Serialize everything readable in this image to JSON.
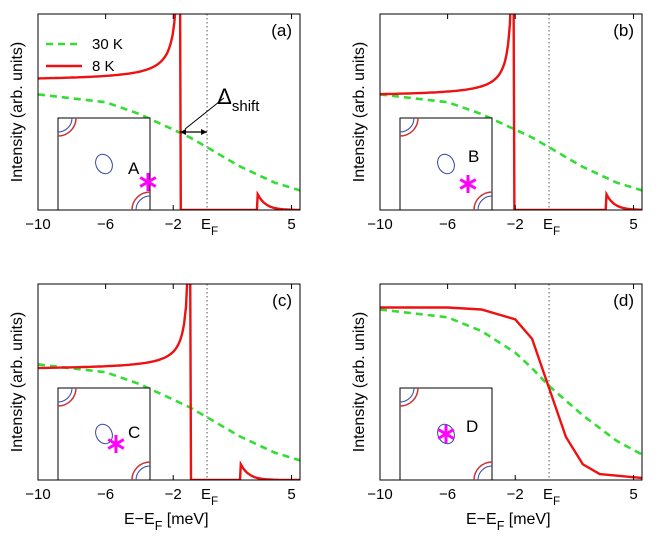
{
  "colors": {
    "series_30K": "#33dd33",
    "series_8K": "#ee1111",
    "marker": "#ff00ff",
    "inset_orbit_outer": "#cc3333",
    "inset_orbit_inner": "#3344aa",
    "ef_line": "#555555"
  },
  "legend": {
    "entries": [
      {
        "name": "30 K",
        "style": "dashed",
        "color": "#33dd33"
      },
      {
        "name": "8 K",
        "style": "solid",
        "color": "#ee1111"
      }
    ],
    "placement": "top-left of panel (a)"
  },
  "annotation": {
    "delta": "Δ",
    "delta_sub": "shift"
  },
  "shared": {
    "ylabel": "Intensity (arb. units)",
    "xlabel": "E−E",
    "xlabel_sub": "F",
    "xlabel_unit": " [meV]",
    "ef_label": "E",
    "ef_sub": "F"
  },
  "chart_data": [
    {
      "type": "line",
      "panel": "(a)",
      "inset_point": "A",
      "xlim": [
        -10,
        5.5
      ],
      "ylim": [
        0,
        1
      ],
      "x_ticks": [
        "−10",
        "−6",
        "−2",
        "5"
      ],
      "x_tick_values": [
        -10,
        -6,
        -2,
        5
      ],
      "ef_marker_x": 0,
      "grid": false,
      "series": [
        {
          "name": "30 K",
          "x": [
            -10,
            -6,
            -4,
            -2,
            -1,
            0,
            2,
            4,
            5.5
          ],
          "y": [
            0.59,
            0.55,
            0.49,
            0.41,
            0.37,
            0.32,
            0.22,
            0.14,
            0.1
          ]
        },
        {
          "name": "8 K",
          "gap_edge": -1.6,
          "peak_x": -1.6,
          "baseline_y": 0.69,
          "side_peak_x": 3.0
        }
      ]
    },
    {
      "type": "line",
      "panel": "(b)",
      "inset_point": "B",
      "xlim": [
        -10,
        5.5
      ],
      "ylim": [
        0,
        1
      ],
      "x_ticks": [
        "−10",
        "−6",
        "−2",
        "5"
      ],
      "x_tick_values": [
        -10,
        -6,
        -2,
        5
      ],
      "ef_marker_x": 0,
      "grid": false,
      "series": [
        {
          "name": "30 K",
          "x": [
            -10,
            -6,
            -4,
            -2,
            -1,
            0,
            2,
            4,
            5.5
          ],
          "y": [
            0.59,
            0.55,
            0.49,
            0.41,
            0.37,
            0.32,
            0.22,
            0.14,
            0.1
          ]
        },
        {
          "name": "8 K",
          "gap_edge": -2.1,
          "peak_x": -2.1,
          "baseline_y": 0.6,
          "side_peak_x": 3.4
        }
      ]
    },
    {
      "type": "line",
      "panel": "(c)",
      "inset_point": "C",
      "xlim": [
        -10,
        5.5
      ],
      "ylim": [
        0,
        1
      ],
      "x_ticks": [
        "−10",
        "−6",
        "−2",
        "5"
      ],
      "x_tick_values": [
        -10,
        -6,
        -2,
        5
      ],
      "ef_marker_x": 0,
      "grid": false,
      "series": [
        {
          "name": "30 K",
          "x": [
            -10,
            -6,
            -4,
            -2,
            -1,
            0,
            2,
            4,
            5.5
          ],
          "y": [
            0.59,
            0.55,
            0.49,
            0.41,
            0.37,
            0.32,
            0.22,
            0.14,
            0.1
          ]
        },
        {
          "name": "8 K",
          "gap_edge": -1.0,
          "peak_x": -1.0,
          "baseline_y": 0.58,
          "side_peak_x": 2.0
        }
      ]
    },
    {
      "type": "line",
      "panel": "(d)",
      "inset_point": "D",
      "xlim": [
        -10,
        5.5
      ],
      "ylim": [
        0,
        1
      ],
      "x_ticks": [
        "−10",
        "−6",
        "−2",
        "5"
      ],
      "x_tick_values": [
        -10,
        -6,
        -2,
        5
      ],
      "ef_marker_x": 0,
      "grid": false,
      "series": [
        {
          "name": "30 K",
          "x": [
            -10,
            -6,
            -4,
            -2,
            -1,
            0,
            2,
            4,
            5.5
          ],
          "y": [
            0.87,
            0.83,
            0.76,
            0.65,
            0.57,
            0.48,
            0.33,
            0.2,
            0.13
          ]
        },
        {
          "name": "8 K",
          "x": [
            -10,
            -6,
            -4,
            -2,
            -1,
            0,
            1,
            2,
            3,
            5.5
          ],
          "y": [
            0.88,
            0.88,
            0.87,
            0.82,
            0.72,
            0.47,
            0.22,
            0.08,
            0.03,
            0.01
          ]
        }
      ]
    }
  ]
}
